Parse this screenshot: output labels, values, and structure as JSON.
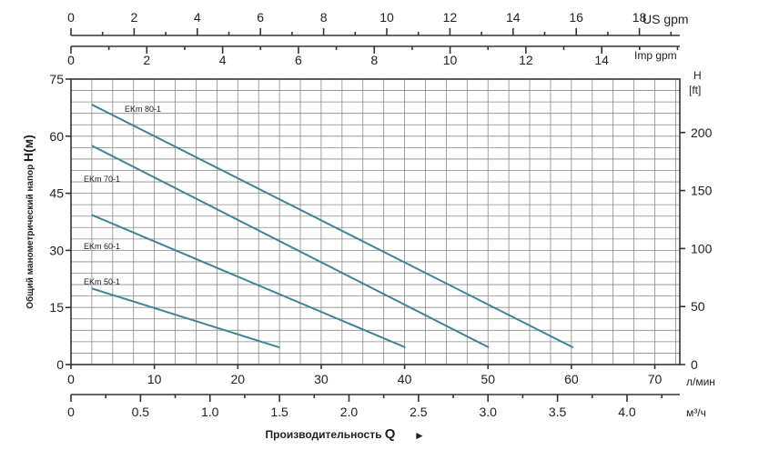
{
  "chart_data": {
    "type": "line",
    "x_unit": "л/мин",
    "y_label": "Общий манометрический напор H(м)",
    "y_label_plain": "Общий манометрический напор ",
    "y_label_emph": "H(м)",
    "xlim": [
      0,
      73
    ],
    "ylim": [
      0,
      75
    ],
    "x_ticks": [
      0,
      10,
      20,
      30,
      40,
      50,
      60,
      70
    ],
    "y_ticks": [
      0,
      15,
      30,
      45,
      60,
      75
    ],
    "grid": true,
    "series": [
      {
        "name": "EKm 80-1",
        "x": [
          2.5,
          60.2
        ],
        "y": [
          68.3,
          4.5
        ]
      },
      {
        "name": "EKm 70-1",
        "x": [
          2.5,
          50.1
        ],
        "y": [
          57.5,
          4.5
        ]
      },
      {
        "name": "EKm 60-1",
        "x": [
          2.5,
          40.1
        ],
        "y": [
          39.3,
          4.5
        ]
      },
      {
        "name": "EKm 50-1",
        "x": [
          2.5,
          25.0
        ],
        "y": [
          20.0,
          4.5
        ]
      }
    ],
    "secondary_axes": {
      "us_gpm": {
        "unit": "US gpm",
        "ticks": [
          0,
          2,
          4,
          6,
          8,
          10,
          12,
          14,
          16,
          18
        ]
      },
      "imp_gpm": {
        "unit": "Imp gpm",
        "ticks": [
          0,
          2,
          4,
          6,
          8,
          10,
          12,
          14
        ]
      },
      "ft": {
        "unit_line1": "H",
        "unit_line2": "[ft]",
        "ticks": [
          0,
          50,
          100,
          150,
          200
        ]
      },
      "m3h": {
        "unit": "м³/ч",
        "ticks": [
          "0",
          "0.5",
          "1.0",
          "1.5",
          "2.0",
          "2.5",
          "3.0",
          "3.5",
          "4.0"
        ]
      }
    },
    "x_title": "Производительность Q",
    "x_title_prefix": "Производительность ",
    "x_title_emph": "Q",
    "x_title_arrow": "►"
  }
}
